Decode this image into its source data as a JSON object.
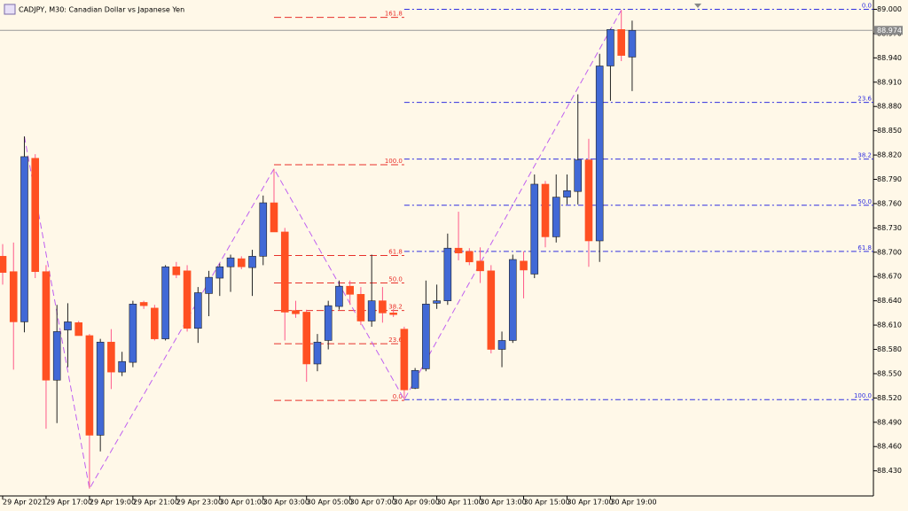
{
  "chart_data": {
    "type": "candlestick",
    "title": "CADJPY, M30:  Canadian Dollar vs Japanese Yen",
    "categories": [
      "29 Apr 2021",
      null,
      null,
      null,
      "29 Apr 17:00",
      null,
      null,
      null,
      "29 Apr 19:00",
      null,
      null,
      null,
      "29 Apr 21:00",
      null,
      null,
      null,
      "29 Apr 23:00",
      null,
      null,
      null,
      "30 Apr 01:00",
      null,
      null,
      null,
      "30 Apr 03:00",
      null,
      null,
      null,
      "30 Apr 05:00",
      null,
      null,
      null,
      "30 Apr 07:00",
      null,
      null,
      null,
      "30 Apr 09:00",
      null,
      null,
      null,
      "30 Apr 11:00",
      null,
      null,
      null,
      "30 Apr 13:00",
      null,
      null,
      null,
      "30 Apr 15:00",
      null,
      null,
      null,
      "30 Apr 17:00",
      null,
      null,
      null,
      "30 Apr 19:00",
      null,
      null
    ],
    "open": [
      88.695,
      88.676,
      88.614,
      88.816,
      88.676,
      88.542,
      88.604,
      88.613,
      88.597,
      88.474,
      88.589,
      88.552,
      88.564,
      88.638,
      88.631,
      88.593,
      88.682,
      88.677,
      88.606,
      88.649,
      88.668,
      88.682,
      88.692,
      88.681,
      88.695,
      88.761,
      88.725,
      88.628,
      88.626,
      88.562,
      88.591,
      88.633,
      88.658,
      88.648,
      88.615,
      88.64,
      88.625,
      88.605,
      88.532,
      88.556,
      88.637,
      88.64,
      88.705,
      88.701,
      88.689,
      88.677,
      88.58,
      88.591,
      88.689,
      88.673,
      88.784,
      88.719,
      88.768,
      88.775,
      88.814,
      88.714,
      88.93,
      88.975,
      88.941
    ],
    "high": [
      88.71,
      88.712,
      88.843,
      88.821,
      88.684,
      88.635,
      88.637,
      88.615,
      88.599,
      88.593,
      88.605,
      88.577,
      88.64,
      88.64,
      88.635,
      88.684,
      88.688,
      88.684,
      88.657,
      88.677,
      88.686,
      88.697,
      88.695,
      88.703,
      88.77,
      88.803,
      88.73,
      88.64,
      88.629,
      88.599,
      88.64,
      88.665,
      88.665,
      88.657,
      88.697,
      88.657,
      88.63,
      88.608,
      88.557,
      88.665,
      88.66,
      88.723,
      88.75,
      88.705,
      88.706,
      88.684,
      88.602,
      88.697,
      88.701,
      88.796,
      88.788,
      88.796,
      88.796,
      88.895,
      88.84,
      88.945,
      88.976,
      88.999,
      88.986
    ],
    "low": [
      88.66,
      88.555,
      88.601,
      88.668,
      88.482,
      88.489,
      88.558,
      88.597,
      88.408,
      88.454,
      88.531,
      88.547,
      88.558,
      88.63,
      88.591,
      88.591,
      88.668,
      88.602,
      88.588,
      88.621,
      88.646,
      88.651,
      88.679,
      88.646,
      88.684,
      88.726,
      88.591,
      88.619,
      88.54,
      88.553,
      88.58,
      88.629,
      88.635,
      88.61,
      88.608,
      88.613,
      88.62,
      88.518,
      88.531,
      88.553,
      88.63,
      88.635,
      88.69,
      88.684,
      88.662,
      88.575,
      88.558,
      88.588,
      88.643,
      88.668,
      88.706,
      88.712,
      88.759,
      88.759,
      88.682,
      88.688,
      88.887,
      88.936,
      88.899
    ],
    "close": [
      88.675,
      88.614,
      88.818,
      88.676,
      88.542,
      88.602,
      88.614,
      88.597,
      88.474,
      88.589,
      88.552,
      88.565,
      88.636,
      88.634,
      88.593,
      88.682,
      88.672,
      88.606,
      88.65,
      88.669,
      88.682,
      88.693,
      88.682,
      88.695,
      88.761,
      88.725,
      88.626,
      88.624,
      88.562,
      88.589,
      88.634,
      88.658,
      88.648,
      88.615,
      88.64,
      88.625,
      88.623,
      88.53,
      88.554,
      88.636,
      88.64,
      88.705,
      88.699,
      88.688,
      88.677,
      88.58,
      88.591,
      88.691,
      88.678,
      88.784,
      88.719,
      88.768,
      88.776,
      88.814,
      88.714,
      88.93,
      88.975,
      88.943,
      88.974
    ],
    "up_color": "#4169d6",
    "down_color": "#ff5022",
    "ylim": [
      88.399,
      89.006
    ],
    "yticks": [
      {
        "value": 89.0,
        "label": "89.000"
      },
      {
        "value": 88.97,
        "label": "88.970"
      },
      {
        "value": 88.94,
        "label": "88.940"
      },
      {
        "value": 88.91,
        "label": "88.910"
      },
      {
        "value": 88.88,
        "label": "88.880"
      },
      {
        "value": 88.85,
        "label": "88.850"
      },
      {
        "value": 88.82,
        "label": "88.820"
      },
      {
        "value": 88.79,
        "label": "88.790"
      },
      {
        "value": 88.76,
        "label": "88.760"
      },
      {
        "value": 88.73,
        "label": "88.730"
      },
      {
        "value": 88.7,
        "label": "88.700"
      },
      {
        "value": 88.67,
        "label": "88.670"
      },
      {
        "value": 88.64,
        "label": "88.640"
      },
      {
        "value": 88.61,
        "label": "88.610"
      },
      {
        "value": 88.58,
        "label": "88.580"
      },
      {
        "value": 88.55,
        "label": "88.550"
      },
      {
        "value": 88.52,
        "label": "88.520"
      },
      {
        "value": 88.49,
        "label": "88.490"
      },
      {
        "value": 88.46,
        "label": "88.460"
      },
      {
        "value": 88.43,
        "label": "88.430"
      }
    ],
    "last_price": 88.974,
    "zigzag": {
      "color": "#c060f0",
      "x": [
        2,
        8,
        25,
        37,
        57
      ],
      "values": [
        88.843,
        88.408,
        88.803,
        88.518,
        88.999
      ]
    },
    "fibonacci": [
      {
        "color": "#e8302a",
        "start": 25,
        "end": 37,
        "levels": [
          {
            "label": "161.8",
            "price": 88.99
          },
          {
            "label": "100.0",
            "price": 88.808
          },
          {
            "label": "61.8",
            "price": 88.696
          },
          {
            "label": "50.0",
            "price": 88.662
          },
          {
            "label": "38.2",
            "price": 88.628
          },
          {
            "label": "23.6",
            "price": 88.587
          },
          {
            "label": "0.0",
            "price": 88.517
          }
        ]
      },
      {
        "color": "#3030e0",
        "start": 37,
        "levels": [
          {
            "label": "0.0",
            "price": 89.0
          },
          {
            "label": "23.6",
            "price": 88.885
          },
          {
            "label": "38.2",
            "price": 88.815
          },
          {
            "label": "50.0",
            "price": 88.758
          },
          {
            "label": "61.8",
            "price": 88.701
          },
          {
            "label": "100.0",
            "price": 88.518
          }
        ]
      }
    ]
  }
}
